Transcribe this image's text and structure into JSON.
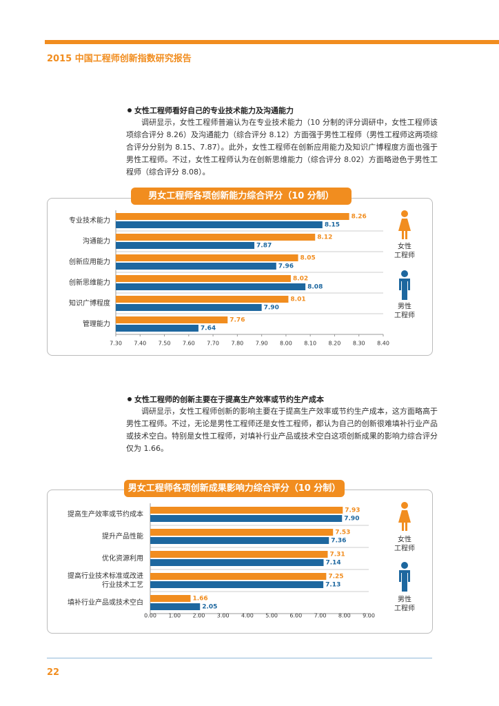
{
  "header": {
    "title": "2015 中国工程师创新指数研究报告"
  },
  "sections": [
    {
      "heading": "女性工程师看好自己的专业技术能力及沟通能力",
      "paragraph": "调研显示，女性工程师普遍认为在专业技术能力（10 分制的评分调研中，女性工程师该项综合评分 8.26）及沟通能力（综合评分 8.12）方面强于男性工程师（男性工程师这两项综合评分分别为 8.15、7.87）。此外，女性工程师在创新应用能力及知识广博程度方面也强于男性工程师。不过，女性工程师认为在创新思维能力（综合评分 8.02）方面略逊色于男性工程师（综合评分 8.08）。"
    },
    {
      "heading": "女性工程师的创新主要在于提高生产效率或节约生产成本",
      "paragraph": "调研显示，女性工程师创新的影响主要在于提高生产效率或节约生产成本，这方面略高于男性工程师。不过，无论是男性工程师还是女性工程师，都认为自己的创新很难填补行业产品或技术空白。特别是女性工程师，对填补行业产品或技术空白这项创新成果的影响力综合评分仅为 1.66。"
    }
  ],
  "chart_data": [
    {
      "type": "bar",
      "orientation": "horizontal",
      "title": "男女工程师各项创新能力综合评分（10 分制）",
      "categories": [
        "专业技术能力",
        "沟通能力",
        "创新应用能力",
        "创新思维能力",
        "知识广博程度",
        "管理能力"
      ],
      "series": [
        {
          "name": "女性\n工程师",
          "color": "#f18d1f",
          "values": [
            8.26,
            8.12,
            8.05,
            8.02,
            8.01,
            7.76
          ],
          "value_labels": [
            "8.26",
            "8.12",
            "8.05",
            "8.02",
            "8.01",
            "7.76"
          ]
        },
        {
          "name": "男性\n工程师",
          "color": "#1d679f",
          "values": [
            8.15,
            7.87,
            7.96,
            8.08,
            7.9,
            7.64
          ],
          "value_labels": [
            "8.15",
            "7.87",
            "7.96",
            "8.08",
            "7.90",
            "7.64"
          ]
        }
      ],
      "xlim": [
        7.3,
        8.4
      ],
      "xticks": [
        {
          "value": 7.3,
          "label": "7.30"
        },
        {
          "value": 7.4,
          "label": "7.40"
        },
        {
          "value": 7.5,
          "label": "7.50"
        },
        {
          "value": 7.6,
          "label": "7.60"
        },
        {
          "value": 7.7,
          "label": "7.70"
        },
        {
          "value": 7.8,
          "label": "7.80"
        },
        {
          "value": 7.9,
          "label": "7.90"
        },
        {
          "value": 8.0,
          "label": "8.00"
        },
        {
          "value": 8.1,
          "label": "8.10"
        },
        {
          "value": 8.2,
          "label": "8.20"
        },
        {
          "value": 8.3,
          "label": "8.30"
        },
        {
          "value": 8.4,
          "label": "8.40"
        }
      ]
    },
    {
      "type": "bar",
      "orientation": "horizontal",
      "title": "男女工程师各项创新成果影响力综合评分（10 分制）",
      "categories": [
        "提高生产效率或节约成本",
        "提升产品性能",
        "优化资源利用",
        "提高行业技术标准或改进\n行业技术工艺",
        "填补行业产品或技术空白"
      ],
      "series": [
        {
          "name": "女性\n工程师",
          "color": "#f18d1f",
          "values": [
            7.93,
            7.53,
            7.31,
            7.25,
            1.66
          ],
          "value_labels": [
            "7.93",
            "7.53",
            "7.31",
            "7.25",
            "1.66"
          ]
        },
        {
          "name": "男性\n工程师",
          "color": "#1d679f",
          "values": [
            7.9,
            7.36,
            7.14,
            7.13,
            2.05
          ],
          "value_labels": [
            "7.90",
            "7.36",
            "7.14",
            "7.13",
            "2.05"
          ]
        }
      ],
      "xlim": [
        0,
        9
      ],
      "xticks": [
        {
          "value": 0,
          "label": "0.00"
        },
        {
          "value": 1,
          "label": "1.00"
        },
        {
          "value": 2,
          "label": "2.00"
        },
        {
          "value": 3,
          "label": "3.00"
        },
        {
          "value": 4,
          "label": "4.00"
        },
        {
          "value": 5,
          "label": "5.00"
        },
        {
          "value": 6,
          "label": "6.00"
        },
        {
          "value": 7,
          "label": "7.00"
        },
        {
          "value": 8,
          "label": "8.00"
        },
        {
          "value": 9,
          "label": "9.00"
        }
      ]
    }
  ],
  "footer": {
    "page": "22"
  }
}
